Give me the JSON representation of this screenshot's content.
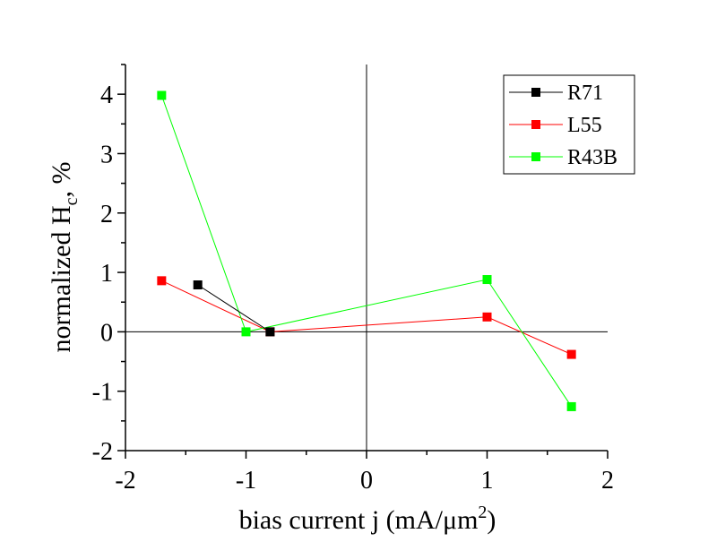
{
  "chart_data": {
    "type": "line",
    "xlabel": {
      "main": "bias current j (mA/μm",
      "sup": "2",
      "close": ")"
    },
    "ylabel": {
      "main": "normalized H",
      "sub": "c",
      "rest": ", %"
    },
    "xlim": [
      -2,
      2
    ],
    "ylim": [
      -2,
      4.5
    ],
    "xticks": [
      -2,
      -1,
      0,
      1,
      2
    ],
    "yticks": [
      -2,
      -1,
      0,
      1,
      2,
      3,
      4
    ],
    "xtick_labels": [
      "-2",
      "-1",
      "0",
      "1",
      "2"
    ],
    "ytick_labels": [
      "-2",
      "-1",
      "0",
      "1",
      "2",
      "3",
      "4"
    ],
    "zero_lines": true,
    "legend_position": "top-right",
    "series": [
      {
        "name": "R71",
        "color": "#000000",
        "x": [
          -1.4,
          -0.8
        ],
        "y": [
          0.79,
          0.0
        ]
      },
      {
        "name": "L55",
        "color": "#ff0000",
        "x": [
          -1.7,
          -0.8,
          1.0,
          1.7
        ],
        "y": [
          0.86,
          0.0,
          0.25,
          -0.38
        ]
      },
      {
        "name": "R43B",
        "color": "#00ff00",
        "x": [
          -1.7,
          -1.0,
          1.0,
          1.7
        ],
        "y": [
          3.98,
          0.0,
          0.88,
          -1.26
        ]
      }
    ]
  }
}
